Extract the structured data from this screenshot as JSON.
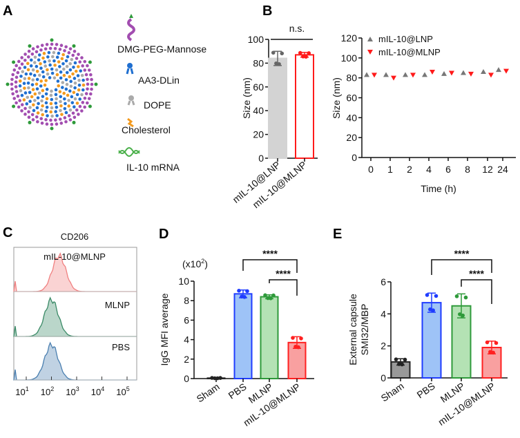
{
  "panels": {
    "a": "A",
    "b": "B",
    "c": "C",
    "d": "D",
    "e": "E"
  },
  "legend_a": [
    "DMG-PEG-Mannose",
    "AA3-DLin",
    "DOPE",
    "Cholesterol",
    "IL-10 mRNA"
  ],
  "colors": {
    "gray": "#8c8c8c",
    "red": "#ff1a1a",
    "blue": "#1f3cff",
    "green": "#2e9a3a",
    "purple": "#a24db0"
  },
  "chart_data": [
    {
      "id": "b1",
      "type": "bar",
      "title": "",
      "ylabel": "Size (nm)",
      "ylim": [
        0,
        100
      ],
      "yticks": [
        "0",
        "20",
        "40",
        "60",
        "80",
        "100"
      ],
      "categories": [
        "mIL-10@LNP",
        "mIL-10@MLNP"
      ],
      "values": [
        84,
        87
      ],
      "errors": [
        6,
        2
      ],
      "points": [
        [
          79,
          85,
          90
        ],
        [
          85,
          87,
          88
        ]
      ],
      "annotation": "n.s."
    },
    {
      "id": "b2",
      "type": "scatter",
      "xlabel": "Time (h)",
      "ylabel": "Size (nm)",
      "ylim": [
        0,
        120
      ],
      "yticks": [
        "0",
        "20",
        "40",
        "60",
        "80",
        "100",
        "120"
      ],
      "x": [
        "0",
        "1",
        "2",
        "4",
        "6",
        "8",
        "12",
        "24"
      ],
      "legend_position": "top-left",
      "series": [
        {
          "name": "mIL-10@LNP",
          "values": [
            83,
            83,
            83,
            83,
            84,
            85,
            86,
            88
          ]
        },
        {
          "name": "mIL-10@MLNP",
          "values": [
            83,
            80,
            83,
            86,
            85,
            84,
            83,
            87
          ]
        }
      ]
    },
    {
      "id": "c",
      "type": "area",
      "title": "CD206",
      "xticks": [
        "10",
        "10",
        "10",
        "10",
        "10"
      ],
      "xtick_exponents": [
        "1",
        "2",
        "3",
        "4",
        "5"
      ],
      "series": [
        {
          "name": "mIL-10@MLNP",
          "peak_log10": 2.3,
          "color": "#f08080"
        },
        {
          "name": "MLNP",
          "peak_log10": 2.0,
          "color": "#3a8a66"
        },
        {
          "name": "PBS",
          "peak_log10": 2.0,
          "color": "#4a7fb0"
        }
      ]
    },
    {
      "id": "d",
      "type": "bar",
      "ylabel": "IgG MFI average",
      "yunit": "(x10",
      "yunit_exp": "2",
      "yunit_close": ")",
      "ylim": [
        0,
        10
      ],
      "yticks": [
        "0",
        "2",
        "4",
        "6",
        "8",
        "10"
      ],
      "categories": [
        "Sham",
        "PBS",
        "MLNP",
        "mIL-10@MLNP"
      ],
      "values": [
        0.05,
        8.7,
        8.4,
        3.7
      ],
      "errors": [
        0.02,
        0.4,
        0.2,
        0.6
      ],
      "significance": [
        "****",
        "****"
      ]
    },
    {
      "id": "e",
      "type": "bar",
      "ylabel": "External capsule",
      "ylabel2": "SMI32/MBP",
      "ylim": [
        0,
        6
      ],
      "yticks": [
        "0",
        "2",
        "4",
        "6"
      ],
      "categories": [
        "Sham",
        "PBS",
        "MLNP",
        "mIL-10@MLNP"
      ],
      "values": [
        1.0,
        4.7,
        4.5,
        1.9
      ],
      "errors": [
        0.2,
        0.6,
        0.75,
        0.4
      ],
      "significance": [
        "****",
        "****"
      ]
    }
  ]
}
